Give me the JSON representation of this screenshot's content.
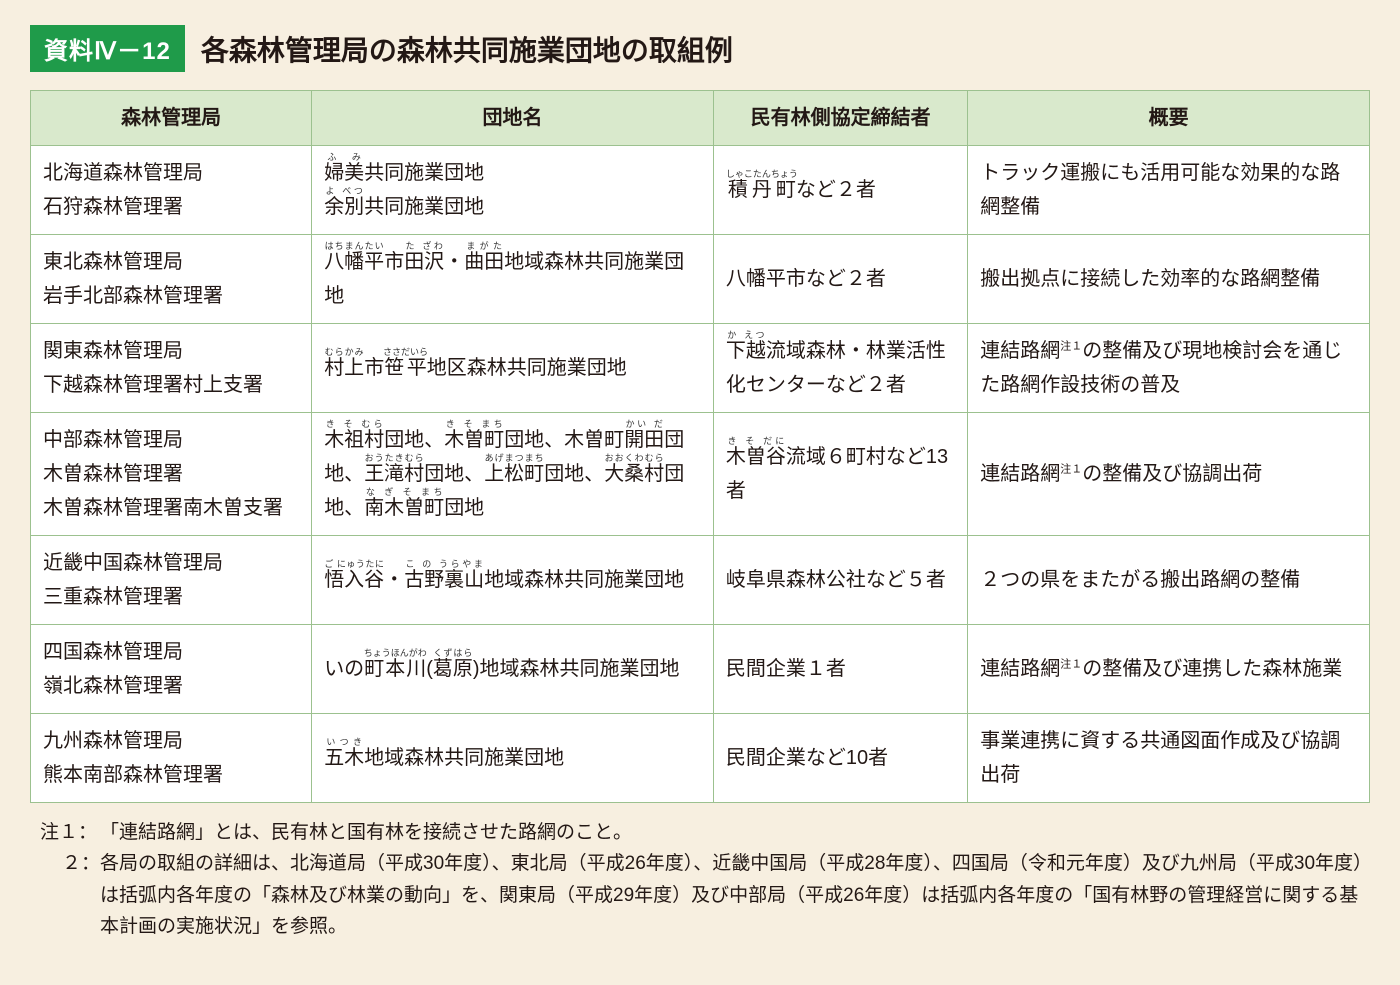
{
  "badge": "資料Ⅳ－12",
  "title": "各森林管理局の森林共同施業団地の取組例",
  "columns": [
    "森林管理局",
    "団地名",
    "民有林側協定締結者",
    "概要"
  ],
  "rows": [
    {
      "bureau_html": "北海道森林管理局<br>石狩森林管理署",
      "danchi_html": "<ruby>婦美<rt>ふ み</rt></ruby>共同施業団地<br><ruby>余別<rt>よ べつ</rt></ruby>共同施業団地",
      "party_html": "<ruby>積丹町<rt>しゃこたんちょう</rt></ruby>など２者",
      "summary_html": "トラック運搬にも活用可能な効果的な路網整備"
    },
    {
      "bureau_html": "東北森林管理局<br>岩手北部森林管理署",
      "danchi_html": "<ruby>八幡平<rt>はちまんたい</rt></ruby>市<ruby>田沢<rt>た ざわ</rt></ruby>・<ruby>曲田<rt>まがた</rt></ruby>地域森林共同施業団地",
      "party_html": "八幡平市など２者",
      "summary_html": "搬出拠点に接続した効率的な路網整備"
    },
    {
      "bureau_html": "関東森林管理局<br>下越森林管理署村上支署",
      "danchi_html": "<ruby>村上<rt>むらかみ</rt></ruby>市<ruby>笹平<rt>ささだいら</rt></ruby>地区森林共同施業団地",
      "party_html": "<ruby>下越<rt>か えつ</rt></ruby>流域森林・林業活性化センターなど２者",
      "summary_html": "連結路網<span class=\"sup\">注１</span>の整備及び現地検討会を通じた路網作設技術の普及"
    },
    {
      "bureau_html": "中部森林管理局<br>木曽森林管理署<br>木曽森林管理署南木曽支署",
      "danchi_html": "<ruby>木祖村<rt>き そ むら</rt></ruby>団地、<ruby>木曽町<rt>き そ まち</rt></ruby>団地、木曽町<ruby>開田<rt>かい だ</rt></ruby>団地、<ruby>王滝村<rt>おうたきむら</rt></ruby>団地、<ruby>上松町<rt>あげまつまち</rt></ruby>団地、<ruby>大桑村<rt>おおくわむら</rt></ruby>団地、<ruby>南木曽町<rt>な ぎ そ まち</rt></ruby>団地",
      "party_html": "<ruby>木曽谷<rt>き そ だに</rt></ruby>流域６町村など13者",
      "summary_html": "連結路網<span class=\"sup\">注１</span>の整備及び協調出荷"
    },
    {
      "bureau_html": "近畿中国森林管理局<br>三重森林管理署",
      "danchi_html": "<ruby>悟入谷<rt>ご にゅうたに</rt></ruby>・<ruby>古野裏山<rt>こ の うらやま</rt></ruby>地域森林共同施業団地",
      "party_html": "岐阜県森林公社など５者",
      "summary_html": "２つの県をまたがる搬出路網の整備"
    },
    {
      "bureau_html": "四国森林管理局<br>嶺北森林管理署",
      "danchi_html": "いの<ruby>町本川<rt>ちょうほんがわ</rt></ruby>(<ruby>葛原<rt>くずはら</rt></ruby>)地域森林共同施業団地",
      "party_html": "民間企業１者",
      "summary_html": "連結路網<span class=\"sup\">注１</span>の整備及び連携した森林施業"
    },
    {
      "bureau_html": "九州森林管理局<br>熊本南部森林管理署",
      "danchi_html": "<ruby>五木<rt>いつき</rt></ruby>地域森林共同施業団地",
      "party_html": "民間企業など10者",
      "summary_html": "事業連携に資する共通図面作成及び協調出荷"
    }
  ],
  "notes": [
    {
      "label": "注１：",
      "text": "「連結路網」とは、民有林と国有林を接続させた路網のこと。"
    },
    {
      "label": "２：",
      "text": "各局の取組の詳細は、北海道局（平成30年度）、東北局（平成26年度）、近畿中国局（平成28年度）、四国局（令和元年度）及び九州局（平成30年度）は括弧内各年度の「森林及び林業の動向」を、関東局（平成29年度）及び中部局（平成26年度）は括弧内各年度の「国有林野の管理経営に関する基本計画の実施状況」を参照。"
    }
  ],
  "colors": {
    "page_bg": "#f7efe0",
    "badge_bg": "#1f9b4a",
    "badge_fg": "#ffffff",
    "header_cell_bg": "#d9e9cc",
    "border": "#9cc18f",
    "text": "#231815"
  }
}
